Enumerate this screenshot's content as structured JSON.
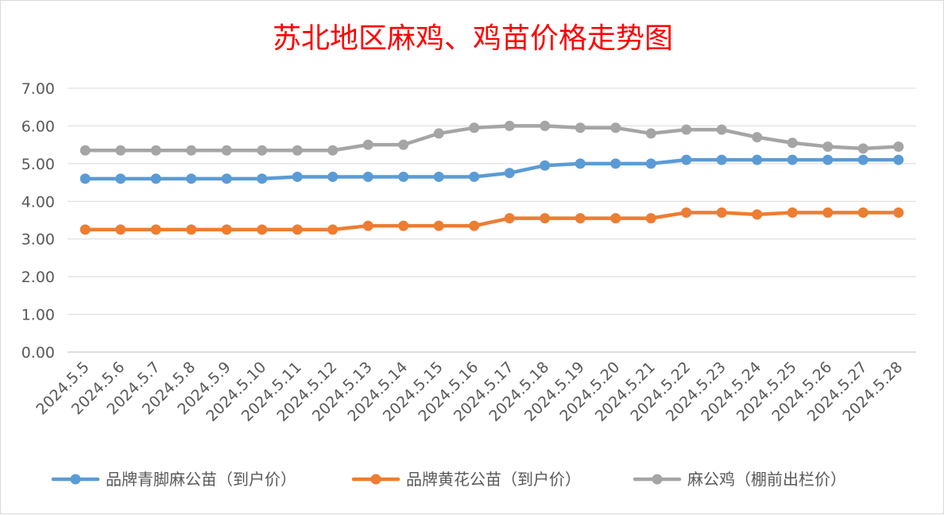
{
  "chart_data": {
    "type": "line",
    "title": "苏北地区麻鸡、鸡苗价格走势图",
    "categories": [
      "2024.5.5",
      "2024.5.6",
      "2024.5.7",
      "2024.5.8",
      "2024.5.9",
      "2024.5.10",
      "2024.5.11",
      "2024.5.12",
      "2024.5.13",
      "2024.5.14",
      "2024.5.15",
      "2024.5.16",
      "2024.5.17",
      "2024.5.18",
      "2024.5.19",
      "2024.5.20",
      "2024.5.21",
      "2024.5.22",
      "2024.5.23",
      "2024.5.24",
      "2024.5.25",
      "2024.5.26",
      "2024.5.27",
      "2024.5.28"
    ],
    "ylim": [
      0,
      7
    ],
    "yticks": [
      "0.00",
      "1.00",
      "2.00",
      "3.00",
      "4.00",
      "5.00",
      "6.00",
      "7.00"
    ],
    "grid": true,
    "legend_position": "bottom",
    "series": [
      {
        "name": "品牌青脚麻公苗（到户价）",
        "color": "#5b9bd5",
        "values": [
          4.6,
          4.6,
          4.6,
          4.6,
          4.6,
          4.6,
          4.65,
          4.65,
          4.65,
          4.65,
          4.65,
          4.65,
          4.75,
          4.95,
          5.0,
          5.0,
          5.0,
          5.1,
          5.1,
          5.1,
          5.1,
          5.1,
          5.1,
          5.1
        ]
      },
      {
        "name": "品牌黄花公苗（到户价）",
        "color": "#ed7d31",
        "values": [
          3.25,
          3.25,
          3.25,
          3.25,
          3.25,
          3.25,
          3.25,
          3.25,
          3.35,
          3.35,
          3.35,
          3.35,
          3.55,
          3.55,
          3.55,
          3.55,
          3.55,
          3.7,
          3.7,
          3.65,
          3.7,
          3.7,
          3.7,
          3.7
        ]
      },
      {
        "name": "麻公鸡（棚前出栏价）",
        "color": "#a5a5a5",
        "values": [
          5.35,
          5.35,
          5.35,
          5.35,
          5.35,
          5.35,
          5.35,
          5.35,
          5.5,
          5.5,
          5.8,
          5.95,
          6.0,
          6.0,
          5.95,
          5.95,
          5.8,
          5.9,
          5.9,
          5.7,
          5.55,
          5.45,
          5.4,
          5.45
        ]
      }
    ]
  }
}
